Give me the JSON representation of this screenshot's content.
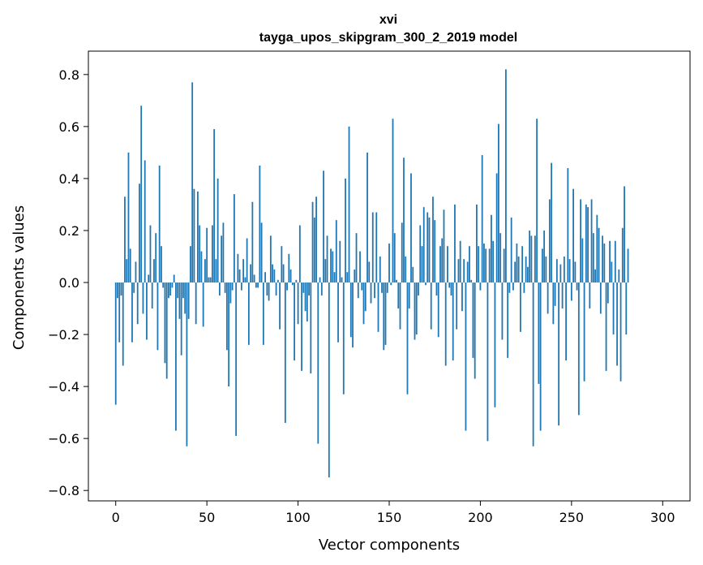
{
  "chart_data": {
    "type": "bar",
    "title": "xvi",
    "subtitle": "tayga_upos_skipgram_300_2_2019 model",
    "xlabel": "Vector components",
    "ylabel": "Components values",
    "xlim": [
      -15,
      315
    ],
    "ylim": [
      -0.84,
      0.89
    ],
    "xticks": [
      0,
      50,
      100,
      150,
      200,
      250,
      300
    ],
    "xtick_labels": [
      "0",
      "50",
      "100",
      "150",
      "200",
      "250",
      "300"
    ],
    "yticks": [
      -0.8,
      -0.6,
      -0.4,
      -0.2,
      0.0,
      0.2,
      0.4,
      0.6,
      0.8
    ],
    "ytick_labels": [
      "−0.8",
      "−0.6",
      "−0.4",
      "−0.2",
      "0.0",
      "0.2",
      "0.4",
      "0.6",
      "0.8"
    ],
    "bar_color": "#1f77b4",
    "values": [
      -0.47,
      -0.06,
      -0.23,
      -0.05,
      -0.32,
      0.33,
      0.09,
      0.5,
      0.13,
      -0.23,
      -0.04,
      0.08,
      -0.16,
      0.38,
      0.68,
      -0.12,
      0.47,
      -0.22,
      0.03,
      0.22,
      -0.1,
      0.09,
      0.19,
      -0.26,
      0.45,
      0.14,
      -0.02,
      -0.31,
      -0.37,
      -0.06,
      -0.05,
      -0.02,
      0.03,
      -0.57,
      -0.06,
      -0.14,
      -0.28,
      -0.06,
      -0.12,
      -0.63,
      -0.14,
      0.14,
      0.77,
      0.36,
      -0.16,
      0.35,
      0.22,
      0.12,
      -0.17,
      0.09,
      0.21,
      0.02,
      0.02,
      0.22,
      0.59,
      0.09,
      0.4,
      -0.05,
      0.18,
      0.23,
      -0.04,
      -0.26,
      -0.4,
      -0.08,
      -0.03,
      0.34,
      -0.59,
      0.11,
      0.05,
      -0.03,
      0.09,
      0.02,
      0.17,
      -0.24,
      0.07,
      0.31,
      0.03,
      -0.02,
      -0.02,
      0.45,
      0.23,
      -0.24,
      0.04,
      -0.05,
      -0.07,
      0.18,
      0.07,
      0.05,
      -0.05,
      0.01,
      -0.18,
      0.14,
      0.07,
      -0.54,
      -0.03,
      0.11,
      0.05,
      -0.01,
      -0.3,
      0.01,
      -0.16,
      0.22,
      -0.34,
      -0.04,
      -0.11,
      -0.15,
      -0.05,
      -0.35,
      0.31,
      0.25,
      0.33,
      -0.62,
      0.02,
      -0.05,
      0.43,
      0.09,
      0.18,
      -0.75,
      0.13,
      0.12,
      0.04,
      0.24,
      -0.23,
      0.16,
      0.02,
      -0.43,
      0.4,
      0.04,
      0.6,
      -0.21,
      -0.25,
      0.05,
      0.19,
      -0.06,
      0.12,
      -0.03,
      -0.16,
      -0.11,
      0.5,
      0.08,
      -0.08,
      0.27,
      -0.06,
      0.27,
      -0.19,
      0.1,
      -0.04,
      -0.26,
      -0.24,
      -0.04,
      0.15,
      -0.01,
      0.63,
      0.19,
      0.01,
      -0.1,
      -0.18,
      0.23,
      0.48,
      0.1,
      -0.43,
      -0.1,
      0.42,
      0.06,
      -0.22,
      -0.2,
      -0.05,
      0.22,
      0.14,
      0.29,
      -0.01,
      0.27,
      0.25,
      -0.18,
      0.33,
      0.24,
      -0.05,
      -0.21,
      0.14,
      0.17,
      0.28,
      -0.32,
      0.14,
      -0.02,
      -0.05,
      -0.3,
      0.3,
      -0.18,
      0.09,
      0.16,
      -0.11,
      0.09,
      -0.57,
      0.08,
      0.14,
      0.01,
      -0.29,
      -0.37,
      0.3,
      0.14,
      -0.03,
      0.49,
      0.15,
      0.13,
      -0.61,
      0.13,
      0.26,
      0.16,
      -0.48,
      0.42,
      0.61,
      0.19,
      -0.22,
      0.13,
      0.82,
      -0.29,
      -0.04,
      0.25,
      -0.03,
      0.08,
      0.15,
      0.1,
      -0.19,
      0.14,
      -0.04,
      0.1,
      0.06,
      0.2,
      0.18,
      -0.63,
      0.18,
      0.63,
      -0.39,
      -0.57,
      0.13,
      0.2,
      0.1,
      -0.12,
      0.32,
      0.46,
      -0.16,
      -0.09,
      0.09,
      -0.55,
      0.07,
      -0.1,
      0.1,
      -0.3,
      0.44,
      0.09,
      -0.07,
      0.36,
      0.08,
      -0.03,
      -0.51,
      0.32,
      0.17,
      -0.38,
      0.3,
      0.29,
      -0.1,
      0.32,
      0.19,
      0.05,
      0.26,
      0.21,
      -0.12,
      0.18,
      0.15,
      -0.34,
      -0.08,
      0.16,
      0.08,
      -0.2,
      0.16,
      -0.32,
      0.05,
      -0.38,
      0.21,
      0.37,
      -0.2,
      0.13
    ]
  }
}
